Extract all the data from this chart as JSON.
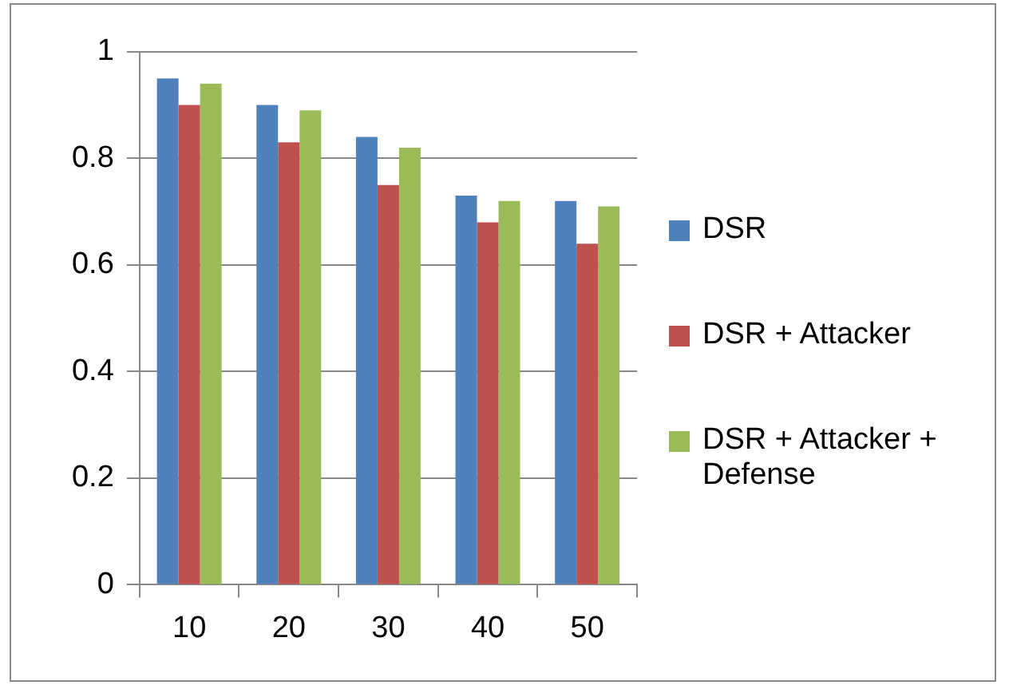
{
  "chart_data": {
    "type": "bar",
    "categories": [
      "10",
      "20",
      "30",
      "40",
      "50"
    ],
    "series": [
      {
        "name": "DSR",
        "color": "#4f81bd",
        "values": [
          0.95,
          0.9,
          0.84,
          0.73,
          0.72
        ]
      },
      {
        "name": "DSR + Attacker",
        "color": "#c0504d",
        "values": [
          0.9,
          0.83,
          0.75,
          0.68,
          0.64
        ]
      },
      {
        "name": "DSR + Attacker  + Defense",
        "color": "#9bbb59",
        "values": [
          0.94,
          0.89,
          0.82,
          0.72,
          0.71
        ]
      }
    ],
    "ylim": [
      0,
      1
    ],
    "yticks": [
      0,
      0.2,
      0.4,
      0.6,
      0.8,
      1
    ],
    "grid": "y",
    "legend": "right"
  }
}
